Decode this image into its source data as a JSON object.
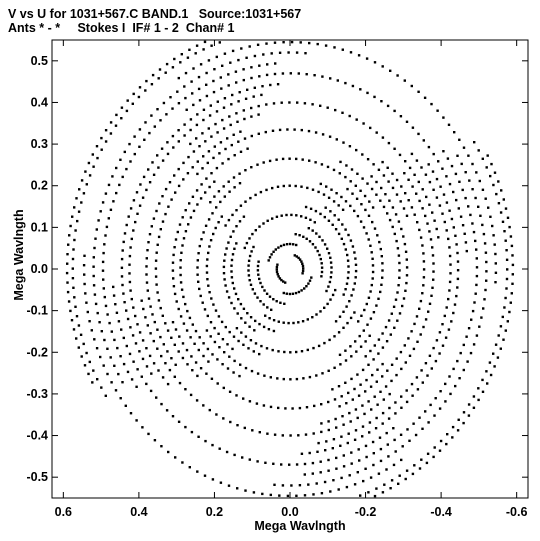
{
  "header": {
    "line1": "V vs U for 1031+567.C BAND.1   Source:1031+567",
    "line2": "Ants * - *     Stokes I  IF# 1 - 2  Chan# 1"
  },
  "chart_data": {
    "type": "scatter",
    "title": "V vs U for 1031+567.C BAND.1   Source:1031+567",
    "subtitle": "Ants * - *     Stokes I  IF# 1 - 2  Chan# 1",
    "xlabel": "Mega Wavlngth",
    "ylabel": "Mega Wavlngth",
    "xlim": [
      0.63,
      -0.63
    ],
    "ylim": [
      -0.55,
      0.55
    ],
    "x_ticks": [
      "0.6",
      "0.4",
      "0.2",
      "0.0",
      "-0.2",
      "-0.4",
      "-0.6"
    ],
    "x_tick_values": [
      0.6,
      0.4,
      0.2,
      0.0,
      -0.2,
      -0.4,
      -0.6
    ],
    "y_ticks": [
      "0.5",
      "0.4",
      "0.3",
      "0.2",
      "0.1",
      "0.0",
      "-0.1",
      "-0.2",
      "-0.3",
      "-0.4",
      "-0.5"
    ],
    "y_tick_values": [
      0.5,
      0.4,
      0.3,
      0.2,
      0.1,
      0.0,
      -0.1,
      -0.2,
      -0.3,
      -0.4,
      -0.5
    ],
    "grid": false,
    "marker_color": "#000000",
    "series": [
      {
        "arcs": [
          {
            "r": 0.035,
            "c": -0.45,
            "w": 1.5,
            "n": 10
          },
          {
            "r": 0.06,
            "c": 1.1,
            "w": 1.5,
            "n": 12
          },
          {
            "r": 0.085,
            "c": 2.55,
            "w": 1.6,
            "n": 14
          },
          {
            "r": 0.11,
            "c": -0.3,
            "w": 1.6,
            "n": 16
          },
          {
            "r": 0.13,
            "c": 1.25,
            "w": 1.7,
            "n": 18
          },
          {
            "r": 0.155,
            "c": 2.7,
            "w": 1.7,
            "n": 20
          },
          {
            "r": 0.175,
            "c": -0.1,
            "w": 1.8,
            "n": 22
          },
          {
            "r": 0.2,
            "c": 1.45,
            "w": 1.8,
            "n": 24
          },
          {
            "r": 0.22,
            "c": 2.85,
            "w": 1.8,
            "n": 26
          },
          {
            "r": 0.245,
            "c": 0.05,
            "w": 1.9,
            "n": 28
          },
          {
            "r": 0.265,
            "c": 1.6,
            "w": 1.9,
            "n": 30
          },
          {
            "r": 0.29,
            "c": 3.0,
            "w": 1.9,
            "n": 32
          },
          {
            "r": 0.31,
            "c": 0.2,
            "w": 2.0,
            "n": 34
          },
          {
            "r": 0.335,
            "c": 1.75,
            "w": 2.0,
            "n": 36
          },
          {
            "r": 0.355,
            "c": -2.95,
            "w": 2.0,
            "n": 38
          },
          {
            "r": 0.38,
            "c": 0.35,
            "w": 2.0,
            "n": 40
          },
          {
            "r": 0.4,
            "c": 1.9,
            "w": 2.1,
            "n": 42
          },
          {
            "r": 0.425,
            "c": -2.8,
            "w": 2.1,
            "n": 44
          },
          {
            "r": 0.445,
            "c": 0.45,
            "w": 2.1,
            "n": 46
          },
          {
            "r": 0.47,
            "c": 2.0,
            "w": 2.1,
            "n": 48
          },
          {
            "r": 0.495,
            "c": -2.7,
            "w": 2.1,
            "n": 50
          },
          {
            "r": 0.52,
            "c": 0.55,
            "w": 2.2,
            "n": 52
          },
          {
            "r": 0.545,
            "c": 2.1,
            "w": 2.2,
            "n": 54
          },
          {
            "r": 0.575,
            "c": -2.6,
            "w": 2.2,
            "n": 56
          },
          {
            "r": 0.59,
            "c": 0.62,
            "w": 2.2,
            "n": 58
          }
        ]
      }
    ]
  }
}
